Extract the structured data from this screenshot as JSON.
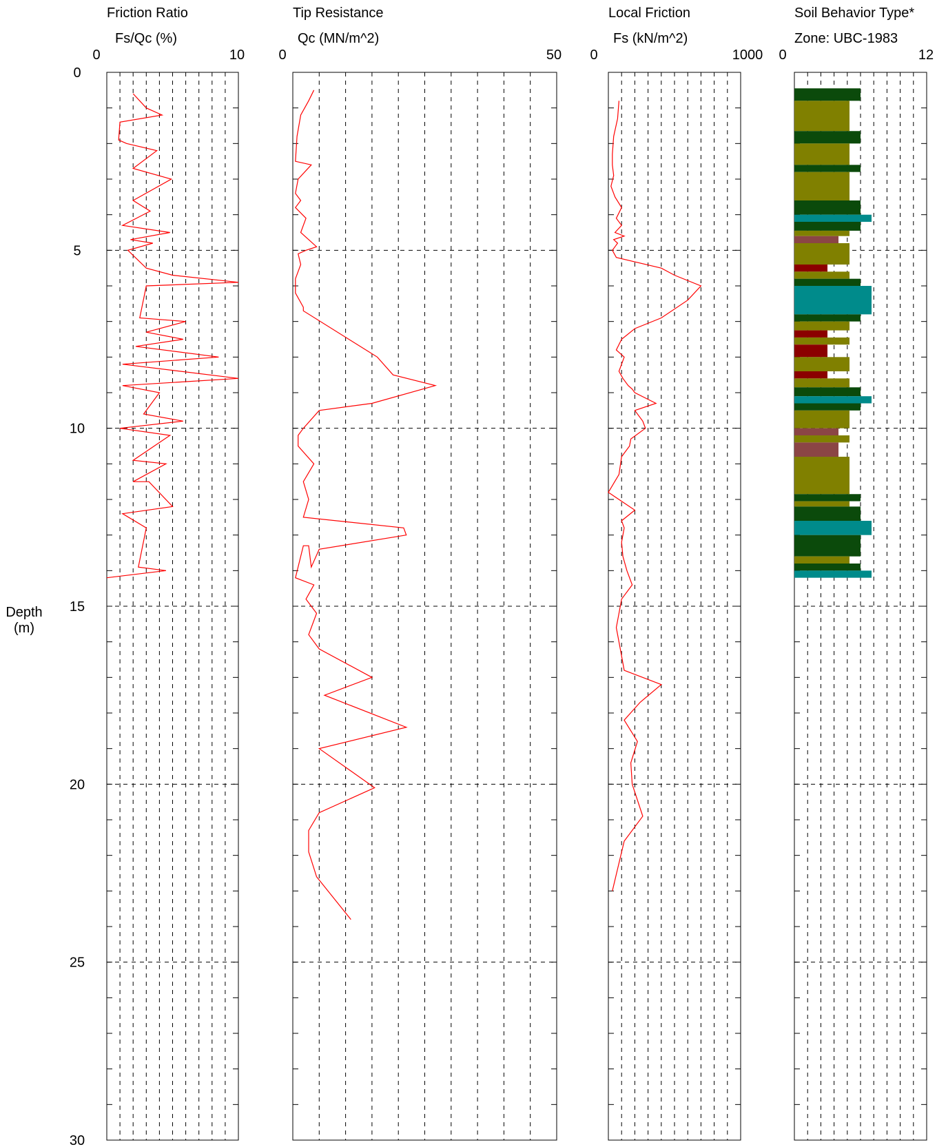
{
  "depth_axis": {
    "label_line1": "Depth",
    "label_line2": "(m)",
    "range": [
      0,
      30
    ],
    "ticks": [
      "0",
      "5",
      "10",
      "15",
      "20",
      "25",
      "30"
    ],
    "tick_values": [
      0,
      5,
      10,
      15,
      20,
      25,
      30
    ]
  },
  "styles": {
    "trace_color": "#ff0000",
    "grid_color": "#000000"
  },
  "chart_data": [
    {
      "type": "line",
      "title": "Friction Ratio",
      "xlabel": "Fs/Qc (%)",
      "xlim": [
        0,
        10
      ],
      "xtick_labels": [
        "0",
        "10"
      ],
      "ylabel": "Depth (m)",
      "ylim": [
        0,
        30
      ],
      "grid": true,
      "series": [
        {
          "x": [
            2.0,
            3.0,
            4.2,
            1.0,
            0.9,
            1.5,
            3.8,
            2.0,
            4.9,
            2.0,
            3.3,
            1.2,
            4.8,
            1.8,
            3.5,
            1.6,
            3.0,
            5.0,
            10.0,
            3.0,
            2.5,
            6.0,
            3.0,
            5.8,
            2.2,
            8.5,
            1.2,
            10.0,
            1.2,
            4.0,
            2.8,
            5.8,
            1.0,
            4.8,
            2.0,
            4.5,
            2.0,
            3.2,
            5.0,
            1.2,
            3.0,
            2.4,
            4.5,
            0.0
          ],
          "y": [
            0.6,
            1.0,
            1.2,
            1.4,
            1.9,
            2.0,
            2.2,
            2.7,
            3.0,
            3.6,
            3.9,
            4.3,
            4.5,
            4.7,
            4.8,
            5.0,
            5.5,
            5.7,
            5.9,
            6.0,
            6.9,
            7.0,
            7.3,
            7.5,
            7.7,
            8.0,
            8.2,
            8.6,
            8.8,
            9.0,
            9.6,
            9.8,
            10.0,
            10.2,
            10.9,
            11.0,
            11.5,
            11.5,
            12.2,
            12.4,
            12.8,
            13.9,
            14.0,
            14.2
          ]
        }
      ]
    },
    {
      "type": "line",
      "title": "Tip Resistance",
      "xlabel": "Qc (MN/m^2)",
      "xlim": [
        0,
        50
      ],
      "xtick_labels": [
        "0",
        "50"
      ],
      "ylabel": "Depth (m)",
      "ylim": [
        0,
        30
      ],
      "grid": true,
      "series": [
        {
          "x": [
            4.0,
            3.0,
            1.5,
            0.8,
            0.5,
            3.5,
            1.0,
            0.5,
            1.5,
            0.5,
            2.5,
            1.5,
            4.5,
            2.5,
            1.0,
            1.5,
            0.5,
            0.5,
            2.0,
            2.0,
            16.0,
            19.0,
            27.0,
            15.0,
            5.0,
            2.0,
            1.0,
            1.0,
            4.0,
            2.0,
            3.0,
            2.0,
            21.0,
            21.5,
            5.0,
            3.5,
            3.0,
            2.0,
            0.5,
            4.0,
            2.5,
            4.5,
            3.0,
            5.0,
            15.0,
            6.0,
            21.5,
            5.0,
            15.5,
            5.0,
            3.0,
            3.0,
            4.5,
            11.0
          ],
          "y": [
            0.5,
            0.8,
            1.2,
            1.8,
            2.5,
            2.6,
            3.0,
            3.4,
            3.6,
            3.8,
            4.1,
            4.5,
            4.9,
            5.0,
            5.1,
            5.4,
            5.8,
            6.2,
            6.6,
            6.7,
            8.0,
            8.5,
            8.8,
            9.3,
            9.5,
            10.0,
            10.2,
            10.5,
            11.0,
            11.5,
            12.0,
            12.5,
            12.8,
            13.0,
            13.4,
            13.9,
            13.3,
            13.3,
            14.2,
            14.4,
            14.8,
            15.2,
            15.8,
            16.2,
            17.0,
            17.5,
            18.4,
            19.0,
            20.1,
            20.8,
            21.3,
            21.9,
            22.6,
            23.8
          ]
        }
      ]
    },
    {
      "type": "line",
      "title": "Local Friction",
      "xlabel": "Fs (kN/m^2)",
      "xlim": [
        0,
        1000
      ],
      "xtick_labels": [
        "0",
        "1000"
      ],
      "ylabel": "Depth (m)",
      "ylim": [
        0,
        30
      ],
      "grid": true,
      "series": [
        {
          "x": [
            80,
            70,
            40,
            30,
            30,
            40,
            20,
            50,
            100,
            60,
            100,
            50,
            120,
            40,
            70,
            50,
            30,
            60,
            400,
            500,
            700,
            600,
            400,
            200,
            100,
            60,
            120,
            100,
            80,
            110,
            150,
            180,
            200,
            360,
            200,
            260,
            280,
            170,
            160,
            100,
            80,
            0,
            200,
            100,
            120,
            100,
            110,
            140,
            180,
            100,
            80,
            60,
            90,
            120,
            400,
            240,
            120,
            220,
            170,
            180,
            260,
            120,
            30
          ],
          "y": [
            0.8,
            1.3,
            1.8,
            2.3,
            2.6,
            2.9,
            3.2,
            3.5,
            3.8,
            4.1,
            4.3,
            4.5,
            4.6,
            4.7,
            4.8,
            4.9,
            5.0,
            5.2,
            5.5,
            5.7,
            6.0,
            6.4,
            6.9,
            7.2,
            7.5,
            7.8,
            8.0,
            8.2,
            8.4,
            8.6,
            8.8,
            8.9,
            9.0,
            9.3,
            9.5,
            9.8,
            10.0,
            10.3,
            10.5,
            10.8,
            11.3,
            11.8,
            12.3,
            12.6,
            12.8,
            13.2,
            13.6,
            14.0,
            14.4,
            14.8,
            15.2,
            15.6,
            16.2,
            16.8,
            17.2,
            17.7,
            18.2,
            18.8,
            19.4,
            20.0,
            20.9,
            21.6,
            23.0
          ]
        }
      ]
    },
    {
      "type": "bar",
      "title": "Soil Behavior Type*",
      "xlabel": "Zone: UBC-1983",
      "xlim": [
        0,
        12
      ],
      "xtick_labels": [
        "0",
        "12"
      ],
      "ylabel": "Depth (m)",
      "ylim": [
        0,
        30
      ],
      "grid": true,
      "legend": [],
      "layers": [
        {
          "top": 0.45,
          "bottom": 0.8,
          "zone": 6,
          "color": "#0b4a0b"
        },
        {
          "top": 0.8,
          "bottom": 1.65,
          "zone": 5,
          "color": "#808000"
        },
        {
          "top": 1.65,
          "bottom": 2.0,
          "zone": 6,
          "color": "#0b4a0b"
        },
        {
          "top": 2.0,
          "bottom": 2.6,
          "zone": 5,
          "color": "#808000"
        },
        {
          "top": 2.6,
          "bottom": 2.8,
          "zone": 6,
          "color": "#0b4a0b"
        },
        {
          "top": 2.8,
          "bottom": 3.6,
          "zone": 5,
          "color": "#808000"
        },
        {
          "top": 3.6,
          "bottom": 4.0,
          "zone": 6,
          "color": "#0b4a0b"
        },
        {
          "top": 4.0,
          "bottom": 4.2,
          "zone": 7,
          "color": "#008b8b"
        },
        {
          "top": 4.2,
          "bottom": 4.45,
          "zone": 6,
          "color": "#0b4a0b"
        },
        {
          "top": 4.45,
          "bottom": 4.6,
          "zone": 5,
          "color": "#808000"
        },
        {
          "top": 4.6,
          "bottom": 4.8,
          "zone": 4,
          "color": "#8b4545"
        },
        {
          "top": 4.8,
          "bottom": 5.4,
          "zone": 5,
          "color": "#808000"
        },
        {
          "top": 5.4,
          "bottom": 5.6,
          "zone": 3,
          "color": "#8b0000"
        },
        {
          "top": 5.6,
          "bottom": 5.8,
          "zone": 5,
          "color": "#808000"
        },
        {
          "top": 5.8,
          "bottom": 6.0,
          "zone": 6,
          "color": "#0b4a0b"
        },
        {
          "top": 6.0,
          "bottom": 6.8,
          "zone": 7,
          "color": "#008b8b"
        },
        {
          "top": 6.8,
          "bottom": 7.0,
          "zone": 6,
          "color": "#0b4a0b"
        },
        {
          "top": 7.0,
          "bottom": 7.25,
          "zone": 5,
          "color": "#808000"
        },
        {
          "top": 7.25,
          "bottom": 7.45,
          "zone": 3,
          "color": "#8b0000"
        },
        {
          "top": 7.45,
          "bottom": 7.65,
          "zone": 5,
          "color": "#808000"
        },
        {
          "top": 7.65,
          "bottom": 8.0,
          "zone": 3,
          "color": "#8b0000"
        },
        {
          "top": 8.0,
          "bottom": 8.4,
          "zone": 5,
          "color": "#808000"
        },
        {
          "top": 8.4,
          "bottom": 8.6,
          "zone": 3,
          "color": "#8b0000"
        },
        {
          "top": 8.6,
          "bottom": 8.85,
          "zone": 5,
          "color": "#808000"
        },
        {
          "top": 8.85,
          "bottom": 9.1,
          "zone": 6,
          "color": "#0b4a0b"
        },
        {
          "top": 9.1,
          "bottom": 9.3,
          "zone": 7,
          "color": "#008b8b"
        },
        {
          "top": 9.3,
          "bottom": 9.5,
          "zone": 6,
          "color": "#0b4a0b"
        },
        {
          "top": 9.5,
          "bottom": 10.0,
          "zone": 5,
          "color": "#808000"
        },
        {
          "top": 10.0,
          "bottom": 10.2,
          "zone": 4,
          "color": "#8b4545"
        },
        {
          "top": 10.2,
          "bottom": 10.4,
          "zone": 5,
          "color": "#808000"
        },
        {
          "top": 10.4,
          "bottom": 10.8,
          "zone": 4,
          "color": "#8b4545"
        },
        {
          "top": 10.8,
          "bottom": 11.85,
          "zone": 5,
          "color": "#808000"
        },
        {
          "top": 11.85,
          "bottom": 12.05,
          "zone": 6,
          "color": "#0b4a0b"
        },
        {
          "top": 12.05,
          "bottom": 12.2,
          "zone": 5,
          "color": "#808000"
        },
        {
          "top": 12.2,
          "bottom": 12.6,
          "zone": 6,
          "color": "#0b4a0b"
        },
        {
          "top": 12.6,
          "bottom": 13.0,
          "zone": 7,
          "color": "#008b8b"
        },
        {
          "top": 13.0,
          "bottom": 13.6,
          "zone": 6,
          "color": "#0b4a0b"
        },
        {
          "top": 13.6,
          "bottom": 13.8,
          "zone": 5,
          "color": "#808000"
        },
        {
          "top": 13.8,
          "bottom": 14.0,
          "zone": 6,
          "color": "#0b4a0b"
        },
        {
          "top": 14.0,
          "bottom": 14.2,
          "zone": 7,
          "color": "#008b8b"
        }
      ]
    }
  ]
}
